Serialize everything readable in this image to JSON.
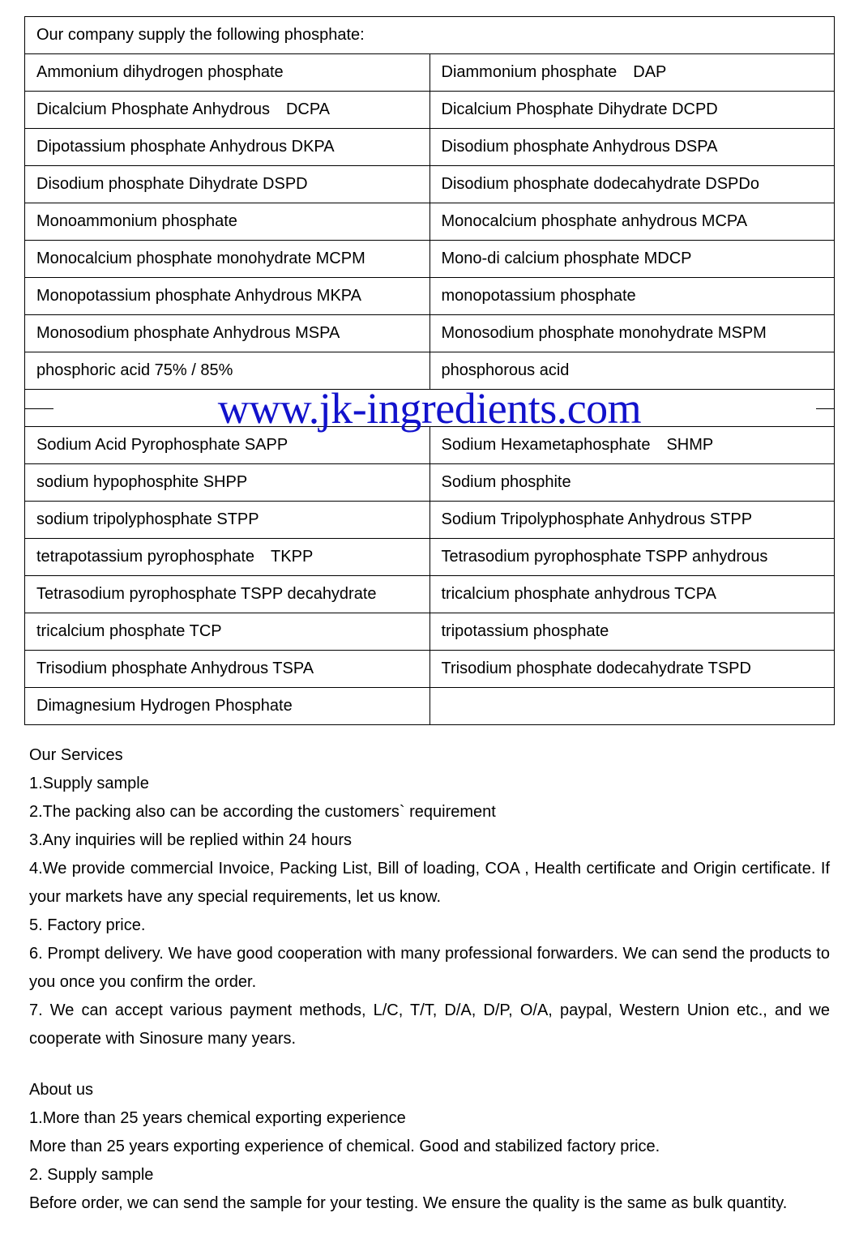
{
  "table": {
    "header": "Our company supply the following phosphate:",
    "rows_top": [
      [
        "Ammonium dihydrogen phosphate",
        "Diammonium phosphate DAP"
      ],
      [
        "Dicalcium Phosphate Anhydrous DCPA",
        "Dicalcium Phosphate Dihydrate DCPD"
      ],
      [
        "Dipotassium phosphate Anhydrous DKPA",
        "Disodium phosphate Anhydrous DSPA"
      ],
      [
        "Disodium phosphate Dihydrate DSPD",
        "Disodium phosphate dodecahydrate DSPDo"
      ],
      [
        "Monoammonium phosphate",
        "Monocalcium phosphate anhydrous MCPA"
      ],
      [
        "Monocalcium phosphate monohydrate MCPM",
        "Mono-di calcium phosphate MDCP"
      ],
      [
        "Monopotassium phosphate Anhydrous MKPA",
        "monopotassium phosphate"
      ],
      [
        "Monosodium phosphate Anhydrous MSPA",
        "Monosodium phosphate monohydrate MSPM"
      ],
      [
        "phosphoric acid 75% / 85%",
        "phosphorous acid"
      ]
    ],
    "watermark": "www.jk-ingredients.com",
    "rows_bottom": [
      [
        "Sodium Acid Pyrophosphate SAPP",
        "Sodium Hexametaphosphate SHMP"
      ],
      [
        "sodium hypophosphite SHPP",
        "Sodium phosphite"
      ],
      [
        "sodium tripolyphosphate STPP",
        "Sodium Tripolyphosphate Anhydrous STPP"
      ],
      [
        "tetrapotassium pyrophosphate TKPP",
        "Tetrasodium pyrophosphate TSPP anhydrous"
      ],
      [
        "Tetrasodium pyrophosphate TSPP decahydrate",
        "tricalcium phosphate anhydrous TCPA"
      ],
      [
        "tricalcium phosphate TCP",
        "tripotassium phosphate"
      ],
      [
        "Trisodium phosphate Anhydrous TSPA",
        "Trisodium phosphate dodecahydrate TSPD"
      ],
      [
        "Dimagnesium Hydrogen Phosphate",
        ""
      ]
    ]
  },
  "services": {
    "heading": "Our Services",
    "items": [
      "1.Supply sample",
      "2.The packing also can be according the customers` requirement",
      "3.Any inquiries will be replied within 24 hours",
      "4.We provide commercial Invoice, Packing List, Bill of loading, COA , Health certificate and Origin certificate. If your markets have any special requirements, let us know.",
      "5. Factory price.",
      "6. Prompt delivery. We have good cooperation with many professional forwarders. We can send the products to you once you confirm the order.",
      "7. We can accept various payment methods, L/C, T/T, D/A, D/P, O/A, paypal, Western Union etc., and we cooperate with Sinosure many years."
    ]
  },
  "about": {
    "heading": "About us",
    "lines": [
      "1.More than 25 years chemical exporting experience",
      "More than 25 years exporting experience of chemical. Good and stabilized factory price.",
      "2. Supply sample",
      "Before order, we can send the sample for your testing. We ensure the quality is the same as bulk quantity."
    ]
  },
  "style": {
    "watermark_color": "#1212cc",
    "text_color": "#000000",
    "border_color": "#000000",
    "background": "#ffffff",
    "cell_fontsize": 20,
    "body_fontsize": 20,
    "watermark_fontsize": 54
  }
}
